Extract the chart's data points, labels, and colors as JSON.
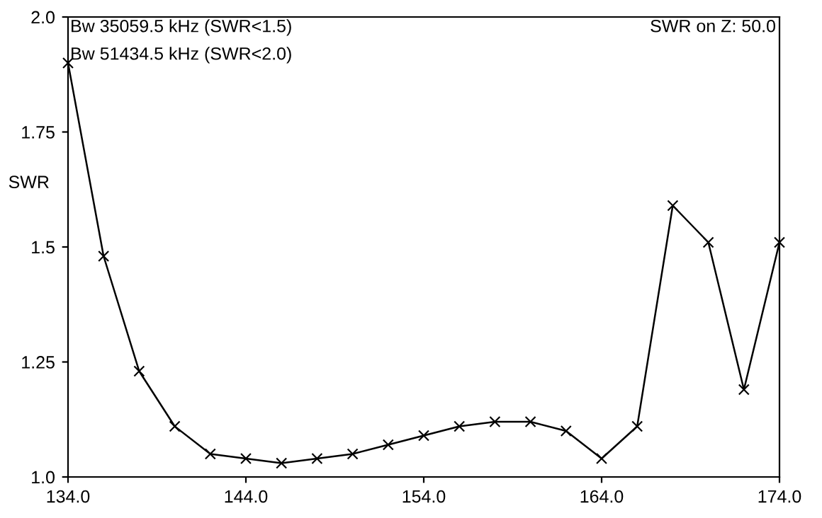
{
  "chart_data": {
    "type": "line",
    "ylabel": "SWR",
    "x": [
      134,
      136,
      138,
      140,
      142,
      144,
      146,
      148,
      150,
      152,
      154,
      156,
      158,
      160,
      162,
      164,
      166,
      168,
      170,
      172,
      174
    ],
    "series": [
      {
        "color": "#000000",
        "values": [
          1.9,
          1.48,
          1.23,
          1.11,
          1.05,
          1.04,
          1.03,
          1.04,
          1.05,
          1.07,
          1.09,
          1.11,
          1.12,
          1.12,
          1.1,
          1.04,
          1.11,
          1.59,
          1.51,
          1.19,
          1.51
        ]
      }
    ],
    "xlim": [
      134.0,
      174.0
    ],
    "ylim": [
      1.0,
      2.0
    ],
    "xticks": [
      {
        "value": 134,
        "label": "134.0"
      },
      {
        "value": 144,
        "label": "144.0"
      },
      {
        "value": 154,
        "label": "154.0"
      },
      {
        "value": 164,
        "label": "164.0"
      },
      {
        "value": 174,
        "label": "174.0"
      }
    ],
    "yticks": [
      {
        "value": 1,
        "label": "1.0"
      },
      1.25,
      1.5,
      1.75,
      {
        "value": 2,
        "label": "2.0"
      }
    ],
    "marker": "cross",
    "line_style": "solid",
    "grid": false,
    "legend": false,
    "annotations": [
      "Bw 35059.5 kHz (SWR<1.5)",
      "Bw 51434.5 kHz (SWR<2.0)",
      "SWR on Z: 50.0"
    ]
  }
}
